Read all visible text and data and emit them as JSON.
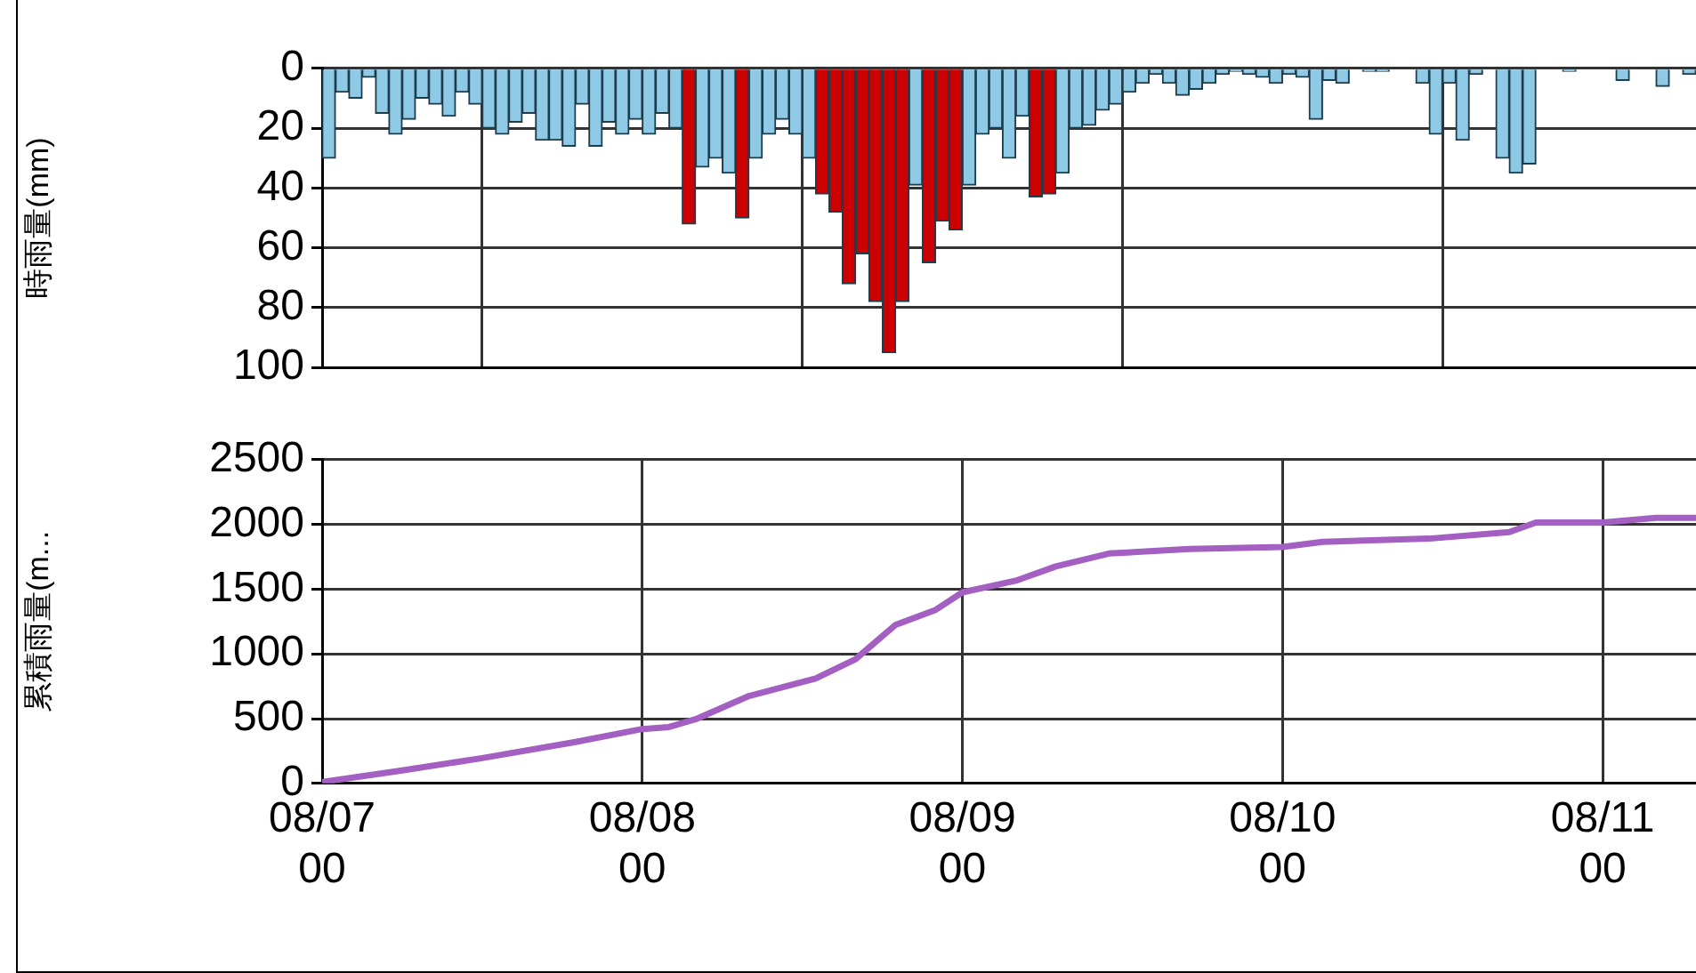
{
  "chart_data": [
    {
      "type": "bar",
      "ylabel": "時雨量(mm)",
      "grid": true,
      "tick_labels": "y",
      "xlim": [
        "--08-07T00:00",
        "--08-11T07:00"
      ],
      "xticks": [
        {
          "value": "--08-07T00:00",
          "label": null
        },
        {
          "value": "--08-08T00:00",
          "label": null
        },
        {
          "value": "--08-09T00:00",
          "label": null
        },
        {
          "value": "--08-10T00:00",
          "label": null
        },
        {
          "value": "--08-11T00:00",
          "label": null
        }
      ],
      "ylim": [
        100,
        0
      ],
      "yticks": [
        0,
        20,
        40,
        60,
        80,
        100
      ],
      "x": [
        "--08-07T00:30",
        "--08-07T01:30",
        "--08-07T02:30",
        "--08-07T03:30",
        "--08-07T04:30",
        "--08-07T05:30",
        "--08-07T06:30",
        "--08-07T07:30",
        "--08-07T08:30",
        "--08-07T09:30",
        "--08-07T10:30",
        "--08-07T11:30",
        "--08-07T12:30",
        "--08-07T13:30",
        "--08-07T14:30",
        "--08-07T15:30",
        "--08-07T16:30",
        "--08-07T17:30",
        "--08-07T18:30",
        "--08-07T19:30",
        "--08-07T20:30",
        "--08-07T21:30",
        "--08-07T22:30",
        "--08-07T23:30",
        "--08-08T00:30",
        "--08-08T01:30",
        "--08-08T02:30",
        "--08-08T03:30",
        "--08-08T04:30",
        "--08-08T05:30",
        "--08-08T06:30",
        "--08-08T07:30",
        "--08-08T08:30",
        "--08-08T09:30",
        "--08-08T10:30",
        "--08-08T11:30",
        "--08-08T12:30",
        "--08-08T13:30",
        "--08-08T14:30",
        "--08-08T15:30",
        "--08-08T16:30",
        "--08-08T17:30",
        "--08-08T18:30",
        "--08-08T19:30",
        "--08-08T20:30",
        "--08-08T21:30",
        "--08-08T22:30",
        "--08-08T23:30",
        "--08-09T00:30",
        "--08-09T01:30",
        "--08-09T02:30",
        "--08-09T03:30",
        "--08-09T04:30",
        "--08-09T05:30",
        "--08-09T06:30",
        "--08-09T07:30",
        "--08-09T08:30",
        "--08-09T09:30",
        "--08-09T10:30",
        "--08-09T11:30",
        "--08-09T12:30",
        "--08-09T13:30",
        "--08-09T14:30",
        "--08-09T15:30",
        "--08-09T16:30",
        "--08-09T17:30",
        "--08-09T18:30",
        "--08-09T19:30",
        "--08-09T20:30",
        "--08-09T21:30",
        "--08-09T22:30",
        "--08-09T23:30",
        "--08-10T00:30",
        "--08-10T01:30",
        "--08-10T02:30",
        "--08-10T03:30",
        "--08-10T04:30",
        "--08-10T05:30",
        "--08-10T06:30",
        "--08-10T07:30",
        "--08-10T08:30",
        "--08-10T09:30",
        "--08-10T10:30",
        "--08-10T11:30",
        "--08-10T12:30",
        "--08-10T13:30",
        "--08-10T14:30",
        "--08-10T15:30",
        "--08-10T16:30",
        "--08-10T17:30",
        "--08-10T18:30",
        "--08-10T19:30",
        "--08-10T20:30",
        "--08-10T21:30",
        "--08-10T22:30",
        "--08-10T23:30",
        "--08-11T00:30",
        "--08-11T01:30",
        "--08-11T02:30",
        "--08-11T03:30",
        "--08-11T04:30",
        "--08-11T05:30",
        "--08-11T06:30"
      ],
      "values": [
        30,
        8,
        10,
        3,
        15,
        22,
        17,
        10,
        12,
        16,
        8,
        12,
        20,
        22,
        18,
        15,
        24,
        24,
        26,
        12,
        26,
        18,
        22,
        17,
        22,
        15,
        20,
        52,
        33,
        30,
        35,
        50,
        30,
        22,
        17,
        22,
        30,
        42,
        48,
        72,
        62,
        78,
        95,
        78,
        39,
        65,
        51,
        54,
        39,
        22,
        20,
        30,
        16,
        43,
        42,
        35,
        20,
        19,
        14,
        12,
        8,
        5,
        2,
        5,
        9,
        7,
        5,
        2,
        1,
        2,
        3,
        5,
        2,
        3,
        17,
        4,
        5,
        0,
        1,
        1,
        0,
        0,
        5,
        22,
        5,
        24,
        2,
        0,
        30,
        35,
        32,
        0,
        0,
        1,
        0,
        0,
        0,
        4,
        0,
        0,
        6,
        0,
        2
      ],
      "colors": [
        "#8ecae6",
        "#8ecae6",
        "#8ecae6",
        "#8ecae6",
        "#8ecae6",
        "#8ecae6",
        "#8ecae6",
        "#8ecae6",
        "#8ecae6",
        "#8ecae6",
        "#8ecae6",
        "#8ecae6",
        "#8ecae6",
        "#8ecae6",
        "#8ecae6",
        "#8ecae6",
        "#8ecae6",
        "#8ecae6",
        "#8ecae6",
        "#8ecae6",
        "#8ecae6",
        "#8ecae6",
        "#8ecae6",
        "#8ecae6",
        "#8ecae6",
        "#8ecae6",
        "#8ecae6",
        "#cc0000",
        "#8ecae6",
        "#8ecae6",
        "#8ecae6",
        "#cc0000",
        "#8ecae6",
        "#8ecae6",
        "#8ecae6",
        "#8ecae6",
        "#8ecae6",
        "#cc0000",
        "#cc0000",
        "#cc0000",
        "#cc0000",
        "#cc0000",
        "#cc0000",
        "#cc0000",
        "#8ecae6",
        "#cc0000",
        "#cc0000",
        "#cc0000",
        "#8ecae6",
        "#8ecae6",
        "#8ecae6",
        "#8ecae6",
        "#8ecae6",
        "#cc0000",
        "#cc0000",
        "#8ecae6",
        "#8ecae6",
        "#8ecae6",
        "#8ecae6",
        "#8ecae6",
        "#8ecae6",
        "#8ecae6",
        "#8ecae6",
        "#8ecae6",
        "#8ecae6",
        "#8ecae6",
        "#8ecae6",
        "#8ecae6",
        "#8ecae6",
        "#8ecae6",
        "#8ecae6",
        "#8ecae6",
        "#8ecae6",
        "#8ecae6",
        "#8ecae6",
        "#8ecae6",
        "#8ecae6",
        "#8ecae6",
        "#8ecae6",
        "#8ecae6",
        "#8ecae6",
        "#8ecae6",
        "#8ecae6",
        "#8ecae6",
        "#8ecae6",
        "#8ecae6",
        "#8ecae6",
        "#8ecae6",
        "#8ecae6",
        "#8ecae6",
        "#8ecae6",
        "#8ecae6",
        "#8ecae6",
        "#8ecae6",
        "#8ecae6",
        "#8ecae6",
        "#8ecae6",
        "#8ecae6",
        "#8ecae6",
        "#8ecae6",
        "#8ecae6",
        "#8ecae6",
        "#8ecae6"
      ]
    },
    {
      "type": "line",
      "ylabel": "累積雨量(m...",
      "grid": true,
      "color": "#a35fc1",
      "xlim": [
        "--08-07T00:00",
        "--08-11T07:00"
      ],
      "xticks": [
        {
          "value": "--08-07T00:00",
          "label": "08/07\n00"
        },
        {
          "value": "--08-08T00:00",
          "label": "08/08\n00"
        },
        {
          "value": "--08-09T00:00",
          "label": "08/09\n00"
        },
        {
          "value": "--08-10T00:00",
          "label": "08/10\n00"
        },
        {
          "value": "--08-11T00:00",
          "label": "08/11\n00"
        }
      ],
      "ylim": [
        0,
        2500
      ],
      "yticks": [
        0,
        500,
        1000,
        1500,
        2000,
        2500
      ],
      "x": [
        "--08-07T00:00",
        "--08-07T06:00",
        "--08-07T12:00",
        "--08-07T19:00",
        "--08-08T00:00",
        "--08-08T02:00",
        "--08-08T04:00",
        "--08-08T08:00",
        "--08-08T13:00",
        "--08-08T16:00",
        "--08-08T19:00",
        "--08-08T22:00",
        "--08-09T00:00",
        "--08-09T04:00",
        "--08-09T07:00",
        "--08-09T11:00",
        "--08-09T17:00",
        "--08-10T00:00",
        "--08-10T03:00",
        "--08-10T11:00",
        "--08-10T17:00",
        "--08-10T19:00",
        "--08-11T00:00",
        "--08-11T04:00",
        "--08-11T07:00"
      ],
      "values": [
        10,
        100,
        195,
        320,
        420,
        435,
        495,
        675,
        810,
        960,
        1225,
        1340,
        1475,
        1565,
        1675,
        1775,
        1810,
        1825,
        1865,
        1890,
        1940,
        2015,
        2015,
        2050,
        2050
      ]
    }
  ]
}
